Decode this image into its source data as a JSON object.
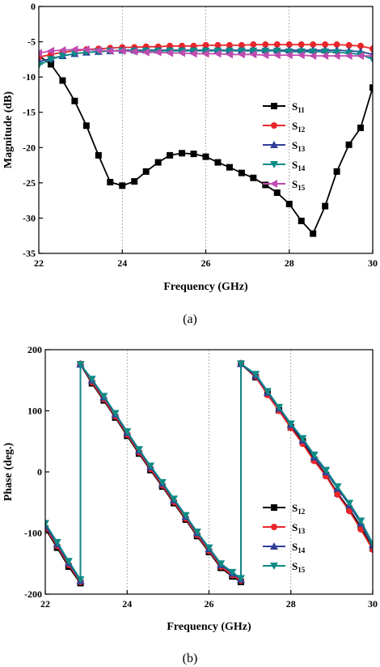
{
  "chart_data": [
    {
      "type": "line",
      "caption": "(a)",
      "xlabel": "Frequency (GHz)",
      "ylabel": "Magnitude (dB)",
      "xlim": [
        22,
        30
      ],
      "ylim": [
        -35,
        0
      ],
      "xticks": [
        22,
        24,
        26,
        28,
        30
      ],
      "yticks": [
        0,
        -5,
        -10,
        -15,
        -20,
        -25,
        -30,
        -35
      ],
      "grid": "x-dashed",
      "legend_placement": "right",
      "series": [
        {
          "name": "S",
          "sub": "11",
          "color": "#000000",
          "marker": "square",
          "x": [
            22.0,
            22.29,
            22.57,
            22.86,
            23.14,
            23.43,
            23.71,
            24.0,
            24.29,
            24.57,
            24.86,
            25.14,
            25.43,
            25.71,
            26.0,
            26.29,
            26.57,
            26.86,
            27.14,
            27.43,
            27.71,
            28.0,
            28.29,
            28.57,
            28.86,
            29.14,
            29.43,
            29.71,
            30.0
          ],
          "y": [
            -7.0,
            -8.2,
            -10.5,
            -13.4,
            -16.9,
            -21.1,
            -24.9,
            -25.4,
            -24.8,
            -23.4,
            -22.1,
            -21.1,
            -20.8,
            -20.9,
            -21.3,
            -22.1,
            -22.8,
            -23.6,
            -24.3,
            -25.3,
            -26.4,
            -28.0,
            -30.4,
            -32.2,
            -28.3,
            -23.4,
            -19.6,
            -17.2,
            -11.5
          ]
        },
        {
          "name": "S",
          "sub": "12",
          "color": "#e8262b",
          "marker": "circle",
          "x": [
            22.0,
            22.29,
            22.57,
            22.86,
            23.14,
            23.43,
            23.71,
            24.0,
            24.29,
            24.57,
            24.86,
            25.14,
            25.43,
            25.71,
            26.0,
            26.29,
            26.57,
            26.86,
            27.14,
            27.43,
            27.71,
            28.0,
            28.29,
            28.57,
            28.86,
            29.14,
            29.43,
            29.71,
            30.0
          ],
          "y": [
            -7.2,
            -6.8,
            -6.5,
            -6.3,
            -6.1,
            -6.0,
            -5.9,
            -5.8,
            -5.8,
            -5.7,
            -5.7,
            -5.6,
            -5.6,
            -5.6,
            -5.5,
            -5.5,
            -5.5,
            -5.5,
            -5.4,
            -5.4,
            -5.4,
            -5.4,
            -5.4,
            -5.4,
            -5.4,
            -5.4,
            -5.5,
            -5.6,
            -6.0
          ]
        },
        {
          "name": "S",
          "sub": "13",
          "color": "#2f3f98",
          "marker": "triangle-up",
          "x": [
            22.0,
            22.29,
            22.57,
            22.86,
            23.14,
            23.43,
            23.71,
            24.0,
            24.29,
            24.57,
            24.86,
            25.14,
            25.43,
            25.71,
            26.0,
            26.29,
            26.57,
            26.86,
            27.14,
            27.43,
            27.71,
            28.0,
            28.29,
            28.57,
            28.86,
            29.14,
            29.43,
            29.71,
            30.0
          ],
          "y": [
            -7.8,
            -7.4,
            -7.0,
            -6.7,
            -6.5,
            -6.4,
            -6.3,
            -6.2,
            -6.2,
            -6.2,
            -6.2,
            -6.2,
            -6.2,
            -6.2,
            -6.2,
            -6.2,
            -6.2,
            -6.2,
            -6.2,
            -6.2,
            -6.2,
            -6.2,
            -6.2,
            -6.2,
            -6.2,
            -6.2,
            -6.3,
            -6.4,
            -6.8
          ]
        },
        {
          "name": "S",
          "sub": "14",
          "color": "#0e8a86",
          "marker": "triangle-down",
          "x": [
            22.0,
            22.29,
            22.57,
            22.86,
            23.14,
            23.43,
            23.71,
            24.0,
            24.29,
            24.57,
            24.86,
            25.14,
            25.43,
            25.71,
            26.0,
            26.29,
            26.57,
            26.86,
            27.14,
            27.43,
            27.71,
            28.0,
            28.29,
            28.57,
            28.86,
            29.14,
            29.43,
            29.71,
            30.0
          ],
          "y": [
            -8.3,
            -7.5,
            -7.0,
            -6.7,
            -6.5,
            -6.4,
            -6.3,
            -6.3,
            -6.3,
            -6.3,
            -6.3,
            -6.3,
            -6.3,
            -6.3,
            -6.3,
            -6.3,
            -6.3,
            -6.3,
            -6.3,
            -6.3,
            -6.3,
            -6.4,
            -6.4,
            -6.4,
            -6.4,
            -6.5,
            -6.6,
            -6.8,
            -7.5
          ]
        },
        {
          "name": "S",
          "sub": "15",
          "color": "#c04bb0",
          "marker": "triangle-left",
          "x": [
            22.0,
            22.29,
            22.57,
            22.86,
            23.14,
            23.43,
            23.71,
            24.0,
            24.29,
            24.57,
            24.86,
            25.14,
            25.43,
            25.71,
            26.0,
            26.29,
            26.57,
            26.86,
            27.14,
            27.43,
            27.71,
            28.0,
            28.29,
            28.57,
            28.86,
            29.14,
            29.43,
            29.71,
            30.0
          ],
          "y": [
            -6.6,
            -6.3,
            -6.2,
            -6.1,
            -6.1,
            -6.2,
            -6.3,
            -6.3,
            -6.4,
            -6.5,
            -6.5,
            -6.6,
            -6.6,
            -6.7,
            -6.7,
            -6.7,
            -6.8,
            -6.8,
            -6.8,
            -6.9,
            -6.9,
            -6.9,
            -6.9,
            -7.0,
            -7.0,
            -7.0,
            -7.0,
            -7.0,
            -7.0
          ]
        }
      ]
    },
    {
      "type": "line",
      "caption": "(b)",
      "xlabel": "Frequency (GHz)",
      "ylabel": "Phase (deg.)",
      "xlim": [
        22,
        30
      ],
      "ylim": [
        -200,
        200
      ],
      "xticks": [
        22,
        24,
        26,
        28,
        30
      ],
      "yticks": [
        200,
        100,
        0,
        -100,
        -200
      ],
      "grid": "x-dashed",
      "legend_placement": "bottom-right",
      "series": [
        {
          "name": "S",
          "sub": "12",
          "color": "#000000",
          "marker": "square",
          "x": [
            22.0,
            22.29,
            22.57,
            22.86,
            22.86,
            23.14,
            23.43,
            23.71,
            24.0,
            24.29,
            24.57,
            24.86,
            25.14,
            25.43,
            25.71,
            26.0,
            26.29,
            26.57,
            26.78,
            26.78,
            27.14,
            27.43,
            27.71,
            28.0,
            28.29,
            28.57,
            28.86,
            29.14,
            29.43,
            29.71,
            30.0
          ],
          "y": [
            -93,
            -124,
            -155,
            -182,
            176,
            145,
            117,
            89,
            59,
            30,
            3,
            -24,
            -51,
            -78,
            -105,
            -131,
            -157,
            -171,
            -180,
            177,
            155,
            128,
            101,
            73,
            50,
            20,
            -5,
            -35,
            -61,
            -90,
            -125
          ]
        },
        {
          "name": "S",
          "sub": "13",
          "color": "#e8262b",
          "marker": "circle",
          "x": [
            22.0,
            22.29,
            22.57,
            22.86,
            22.86,
            23.14,
            23.43,
            23.71,
            24.0,
            24.29,
            24.57,
            24.86,
            25.14,
            25.43,
            25.71,
            26.0,
            26.29,
            26.57,
            26.78,
            26.78,
            27.14,
            27.43,
            27.71,
            28.0,
            28.29,
            28.57,
            28.86,
            29.14,
            29.43,
            29.71,
            30.0
          ],
          "y": [
            -91,
            -121,
            -152,
            -180,
            177,
            147,
            119,
            91,
            61,
            32,
            5,
            -22,
            -49,
            -76,
            -103,
            -129,
            -155,
            -169,
            -178,
            178,
            156,
            126,
            100,
            72,
            46,
            18,
            -7,
            -37,
            -64,
            -94,
            -127
          ]
        },
        {
          "name": "S",
          "sub": "14",
          "color": "#2f3f98",
          "marker": "triangle-up",
          "x": [
            22.0,
            22.29,
            22.57,
            22.86,
            22.86,
            23.14,
            23.43,
            23.71,
            24.0,
            24.29,
            24.57,
            24.86,
            25.14,
            25.43,
            25.71,
            26.0,
            26.29,
            26.57,
            26.78,
            26.78,
            27.14,
            27.43,
            27.71,
            28.0,
            28.29,
            28.57,
            28.86,
            29.14,
            29.43,
            29.71,
            30.0
          ],
          "y": [
            -88,
            -118,
            -149,
            -178,
            176,
            150,
            122,
            94,
            64,
            35,
            8,
            -19,
            -46,
            -73,
            -100,
            -126,
            -152,
            -166,
            -176,
            177,
            158,
            130,
            104,
            77,
            52,
            24,
            0,
            -27,
            -54,
            -84,
            -120
          ]
        },
        {
          "name": "S",
          "sub": "15",
          "color": "#0e8a86",
          "marker": "triangle-down",
          "x": [
            22.0,
            22.29,
            22.57,
            22.86,
            22.86,
            23.14,
            23.43,
            23.71,
            24.0,
            24.29,
            24.57,
            24.86,
            25.14,
            25.43,
            25.71,
            26.0,
            26.29,
            26.57,
            26.78,
            26.78,
            27.14,
            27.43,
            27.71,
            28.0,
            28.29,
            28.57,
            28.86,
            29.14,
            29.43,
            29.71,
            30.0
          ],
          "y": [
            -84,
            -115,
            -146,
            -176,
            176,
            152,
            124,
            96,
            66,
            37,
            10,
            -17,
            -44,
            -71,
            -98,
            -124,
            -150,
            -164,
            -174,
            177,
            160,
            132,
            106,
            79,
            55,
            28,
            3,
            -24,
            -51,
            -80,
            -117
          ]
        }
      ]
    }
  ]
}
